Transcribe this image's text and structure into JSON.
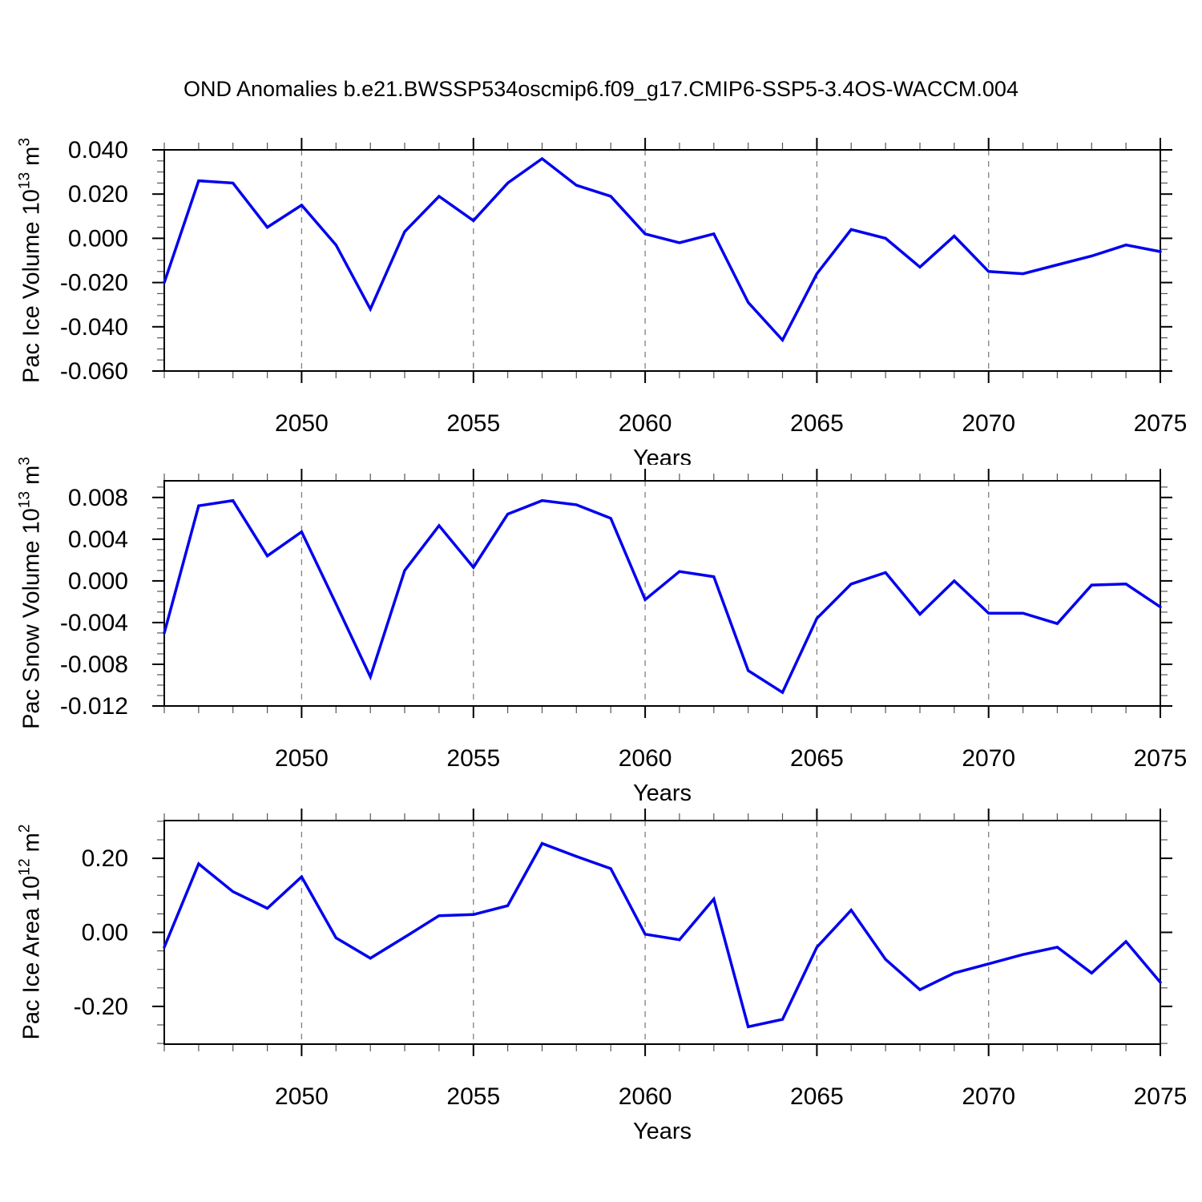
{
  "page": {
    "title": "OND Anomalies b.e21.BWSSP534oscmip6.f09_g17.CMIP6-SSP5-3.4OS-WACCM.004",
    "background": "#ffffff",
    "line_color": "#0000EE",
    "grid_color": "#808080"
  },
  "chart_data": [
    {
      "type": "line",
      "name": "pac-ice-volume",
      "ylabel": {
        "base": "Pac Ice Volume 10",
        "base_exp": "13",
        "mid": " m",
        "unit_exp": "3"
      },
      "xlabel": "Years",
      "x": [
        2046,
        2047,
        2048,
        2049,
        2050,
        2051,
        2052,
        2053,
        2054,
        2055,
        2056,
        2057,
        2058,
        2059,
        2060,
        2061,
        2062,
        2063,
        2064,
        2065,
        2066,
        2067,
        2068,
        2069,
        2070,
        2071,
        2072,
        2073,
        2074,
        2075
      ],
      "values": [
        -0.02,
        0.026,
        0.025,
        0.005,
        0.015,
        -0.003,
        -0.032,
        0.003,
        0.019,
        0.008,
        0.025,
        0.036,
        0.024,
        0.019,
        0.002,
        -0.002,
        0.002,
        -0.029,
        -0.046,
        -0.016,
        0.004,
        0.0,
        -0.013,
        0.001,
        -0.015,
        -0.016,
        -0.012,
        -0.008,
        -0.003,
        -0.006
      ],
      "xlim": [
        2046,
        2075
      ],
      "ylim": [
        -0.06,
        0.04
      ],
      "yticks": [
        0.04,
        0.02,
        0.0,
        -0.02,
        -0.04,
        -0.06
      ],
      "ytick_labels": [
        "0.040",
        "0.020",
        "0.000",
        "-0.020",
        "-0.040",
        "-0.060"
      ],
      "ytick_minor_step": 0.005,
      "xticks": [
        2050,
        2055,
        2060,
        2065,
        2070,
        2075
      ],
      "xtick_labels": [
        "2050",
        "2055",
        "2060",
        "2065",
        "2070",
        "2075"
      ],
      "grid_x": [
        2050,
        2055,
        2060,
        2065,
        2070
      ],
      "grid_style": "dashed",
      "legend": "none"
    },
    {
      "type": "line",
      "name": "pac-snow-volume",
      "ylabel": {
        "base": "Pac Snow Volume 10",
        "base_exp": "13",
        "mid": " m",
        "unit_exp": "3"
      },
      "xlabel": "Years",
      "x": [
        2046,
        2047,
        2048,
        2049,
        2050,
        2051,
        2052,
        2053,
        2054,
        2055,
        2056,
        2057,
        2058,
        2059,
        2060,
        2061,
        2062,
        2063,
        2064,
        2065,
        2066,
        2067,
        2068,
        2069,
        2070,
        2071,
        2072,
        2073,
        2074,
        2075
      ],
      "values": [
        -0.005,
        0.0072,
        0.0077,
        0.0024,
        0.0047,
        -0.0022,
        -0.0092,
        0.001,
        0.0053,
        0.0013,
        0.0064,
        0.0077,
        0.0073,
        0.006,
        -0.0018,
        0.0009,
        0.0004,
        -0.0086,
        -0.0107,
        -0.0036,
        -0.0003,
        0.0008,
        -0.0032,
        0.0,
        -0.0031,
        -0.0031,
        -0.0041,
        -0.0004,
        -0.0003,
        -0.0025
      ],
      "xlim": [
        2046,
        2075
      ],
      "ylim": [
        -0.012,
        0.0096
      ],
      "yticks": [
        0.008,
        0.004,
        0.0,
        -0.004,
        -0.008,
        -0.012
      ],
      "ytick_labels": [
        "0.008",
        "0.004",
        "0.000",
        "-0.004",
        "-0.008",
        "-0.012"
      ],
      "ytick_minor_step": 0.001,
      "xticks": [
        2050,
        2055,
        2060,
        2065,
        2070,
        2075
      ],
      "xtick_labels": [
        "2050",
        "2055",
        "2060",
        "2065",
        "2070",
        "2075"
      ],
      "grid_x": [
        2050,
        2055,
        2060,
        2065,
        2070
      ],
      "grid_style": "dashed",
      "legend": "none"
    },
    {
      "type": "line",
      "name": "pac-ice-area",
      "ylabel": {
        "base": "Pac Ice Area 10",
        "base_exp": "12",
        "mid": " m",
        "unit_exp": "2"
      },
      "xlabel": "Years",
      "x": [
        2046,
        2047,
        2048,
        2049,
        2050,
        2051,
        2052,
        2053,
        2054,
        2055,
        2056,
        2057,
        2058,
        2059,
        2060,
        2061,
        2062,
        2063,
        2064,
        2065,
        2066,
        2067,
        2068,
        2069,
        2070,
        2071,
        2072,
        2073,
        2074,
        2075
      ],
      "values": [
        -0.04,
        0.185,
        0.11,
        0.065,
        0.15,
        -0.015,
        -0.07,
        -0.013,
        0.045,
        0.048,
        0.072,
        0.24,
        0.205,
        0.172,
        -0.005,
        -0.02,
        0.09,
        -0.255,
        -0.235,
        -0.04,
        0.06,
        -0.073,
        -0.155,
        -0.11,
        -0.085,
        -0.06,
        -0.04,
        -0.11,
        -0.025,
        -0.135
      ],
      "xlim": [
        2046,
        2075
      ],
      "ylim": [
        -0.302,
        0.302
      ],
      "yticks": [
        0.2,
        0.0,
        -0.2
      ],
      "ytick_labels": [
        "0.20",
        "0.00",
        "-0.20"
      ],
      "ytick_minor_step": 0.05,
      "xticks": [
        2050,
        2055,
        2060,
        2065,
        2070,
        2075
      ],
      "xtick_labels": [
        "2050",
        "2055",
        "2060",
        "2065",
        "2070",
        "2075"
      ],
      "grid_x": [
        2050,
        2055,
        2060,
        2065,
        2070
      ],
      "grid_style": "dashed",
      "legend": "none"
    }
  ]
}
